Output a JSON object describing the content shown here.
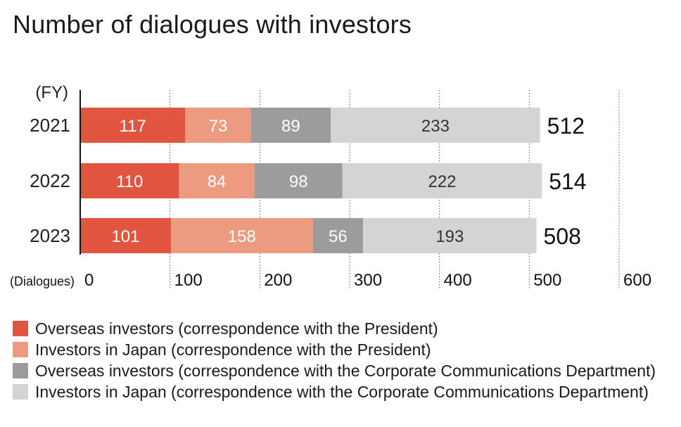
{
  "title": "Number of dialogues with investors",
  "chart_data": {
    "type": "bar",
    "orientation": "horizontal",
    "stacked": true,
    "title": "Number of dialogues with investors",
    "ylabel": "(FY)",
    "xlabel": "(Dialogues)",
    "categories": [
      "2021",
      "2022",
      "2023"
    ],
    "series": [
      {
        "name": "Overseas investors (correspondence with the President)",
        "values": [
          117,
          110,
          101
        ],
        "color": "#e05440"
      },
      {
        "name": "Investors in Japan (correspondence with the President)",
        "values": [
          73,
          84,
          158
        ],
        "color": "#ec9a80"
      },
      {
        "name": "Overseas investors (correspondence with the Corporate Communications Department)",
        "values": [
          89,
          98,
          56
        ],
        "color": "#9c9c9c"
      },
      {
        "name": "Investors in Japan (correspondence with the Corporate Communications Department)",
        "values": [
          233,
          222,
          193
        ],
        "color": "#d4d4d4"
      }
    ],
    "totals": [
      "512",
      "514",
      "508"
    ],
    "xticks": [
      "0",
      "100",
      "200",
      "300",
      "400",
      "500",
      "600"
    ],
    "xlim": [
      0,
      600
    ],
    "grid": true,
    "legend_position": "bottom"
  }
}
